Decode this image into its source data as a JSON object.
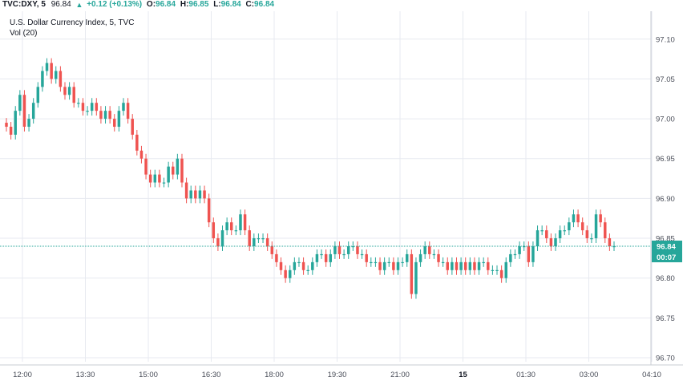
{
  "header": {
    "symbol": "TVC:DXY, 5",
    "last": "96.84",
    "change": "+0.12 (+0.13%)",
    "change_icon": "triangle-up",
    "o_label": "O:",
    "o_value": "96.84",
    "h_label": "H:",
    "h_value": "96.85",
    "l_label": "L:",
    "l_value": "96.84",
    "c_label": "C:",
    "c_value": "96.84"
  },
  "legend": {
    "title": "U.S. Dollar Currency Index, 5, TVC",
    "volume": "Vol (20)"
  },
  "price_tags": {
    "last_price": "96.84",
    "countdown": "00:07"
  },
  "colors": {
    "up": "#26a69a",
    "down": "#ef5350",
    "grid": "#e7eaf0",
    "last_price_line": "#26a69a",
    "last_price_tag": "#26a69a"
  },
  "chart_data": {
    "type": "candlestick",
    "title": "U.S. Dollar Currency Index, 5, TVC",
    "ylim": [
      96.695,
      97.135
    ],
    "y_ticks": [
      96.7,
      96.75,
      96.8,
      96.85,
      96.9,
      96.95,
      97.0,
      97.05,
      97.1
    ],
    "y_tick_labels": [
      "96.70",
      "96.75",
      "96.80",
      "96.85",
      "96.90",
      "96.95",
      "97.00",
      "97.05",
      "97.10"
    ],
    "x_ticks": [
      "12:00",
      "13:30",
      "15:00",
      "16:30",
      "18:00",
      "19:30",
      "21:00",
      "15",
      "01:30",
      "03:00",
      "04:10"
    ],
    "grid": true,
    "last_price": 96.84,
    "candles_close": [
      96.99,
      96.98,
      97.01,
      97.03,
      96.99,
      97.0,
      97.02,
      97.04,
      97.06,
      97.07,
      97.05,
      97.06,
      97.04,
      97.03,
      97.04,
      97.02,
      97.02,
      97.01,
      97.01,
      97.02,
      97.01,
      97.0,
      97.01,
      97.0,
      96.99,
      97.01,
      97.02,
      97.0,
      96.98,
      96.96,
      96.95,
      96.93,
      96.92,
      96.93,
      96.92,
      96.92,
      96.94,
      96.93,
      96.95,
      96.92,
      96.9,
      96.91,
      96.9,
      96.91,
      96.9,
      96.87,
      96.85,
      96.84,
      96.86,
      96.87,
      96.86,
      96.86,
      96.88,
      96.86,
      96.84,
      96.85,
      96.85,
      96.85,
      96.84,
      96.83,
      96.82,
      96.81,
      96.8,
      96.81,
      96.82,
      96.82,
      96.81,
      96.81,
      96.82,
      96.83,
      96.83,
      96.82,
      96.83,
      96.84,
      96.83,
      96.83,
      96.84,
      96.84,
      96.83,
      96.83,
      96.82,
      96.82,
      96.82,
      96.81,
      96.82,
      96.82,
      96.81,
      96.82,
      96.82,
      96.83,
      96.78,
      96.82,
      96.83,
      96.84,
      96.83,
      96.83,
      96.82,
      96.82,
      96.81,
      96.82,
      96.81,
      96.82,
      96.81,
      96.82,
      96.81,
      96.82,
      96.82,
      96.81,
      96.81,
      96.81,
      96.8,
      96.82,
      96.83,
      96.83,
      96.84,
      96.84,
      96.82,
      96.84,
      96.86,
      96.86,
      96.85,
      96.84,
      96.85,
      96.86,
      96.86,
      96.87,
      96.88,
      96.87,
      96.86,
      96.85,
      96.85,
      96.88,
      96.87,
      96.85,
      96.84,
      96.84
    ]
  }
}
